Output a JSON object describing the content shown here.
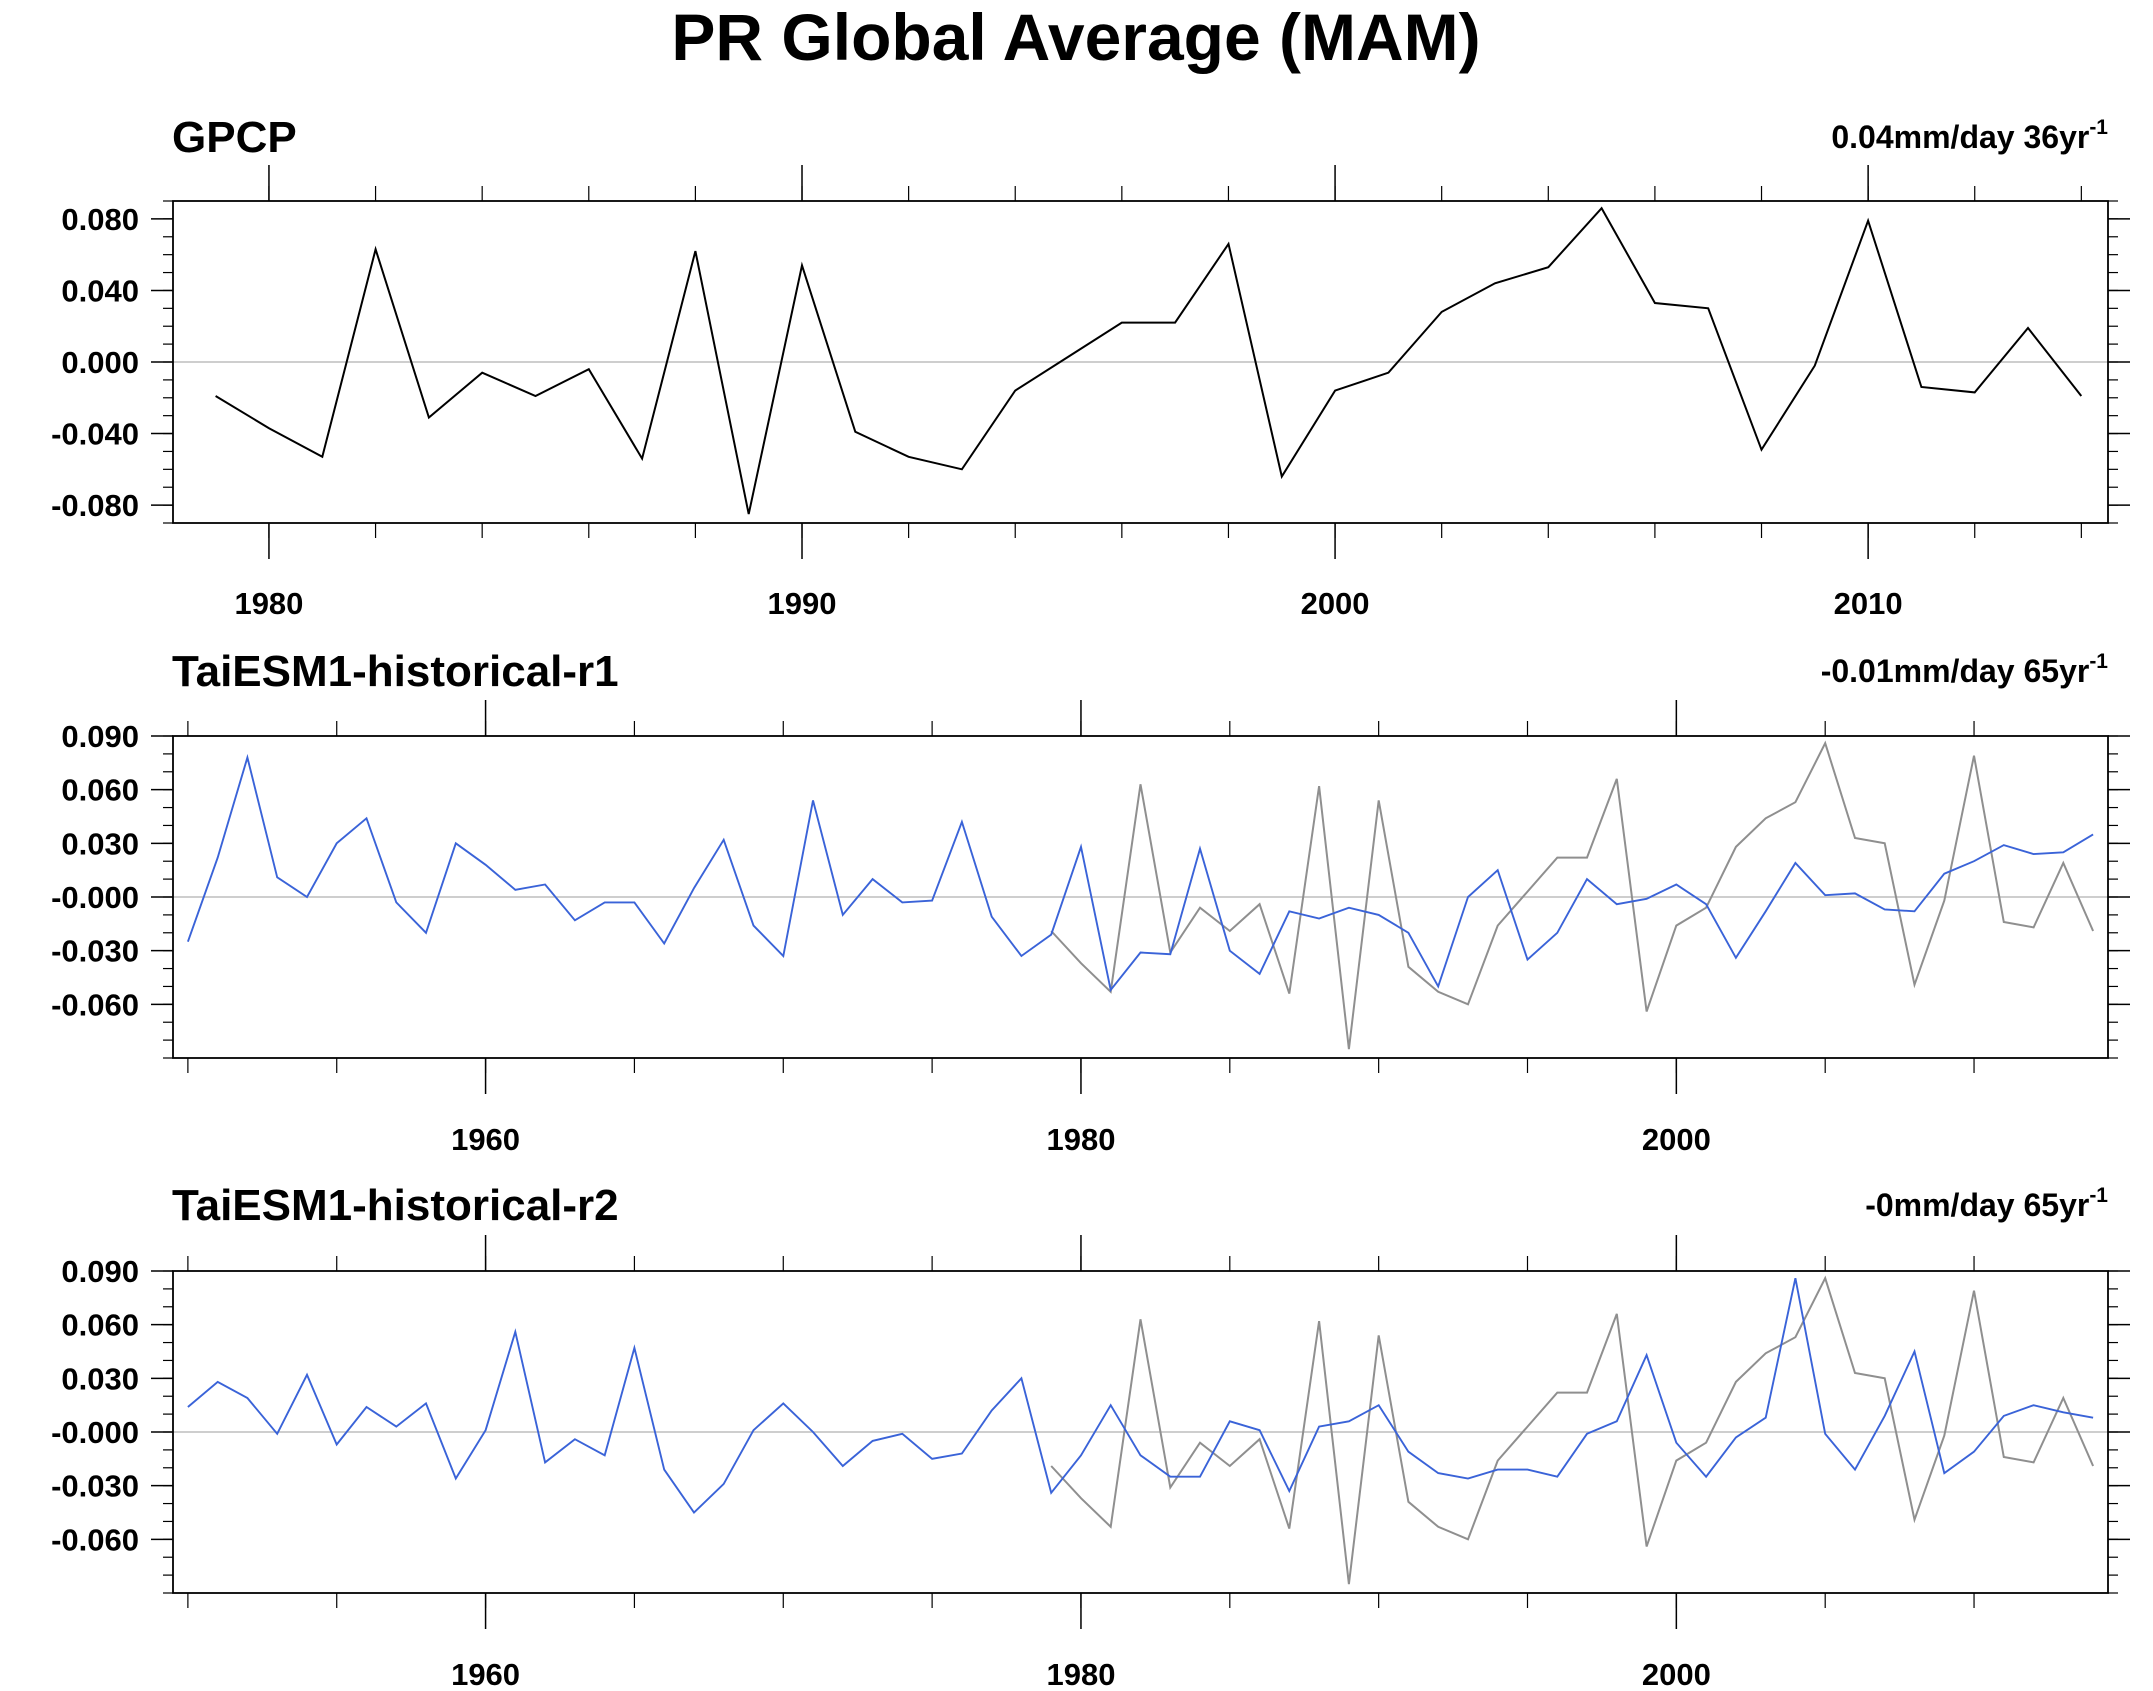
{
  "title": "PR Global Average (MAM)",
  "colors": {
    "obs": "#000000",
    "obs_reference": "#8f8f8f",
    "model": "#3a63d8",
    "zero_line": "#bdbdbd",
    "axis": "#000000"
  },
  "chart_data": [
    {
      "type": "line",
      "title": "GPCP",
      "trend_label": {
        "value": "0.04mm/day 36yr",
        "superscript": "-1"
      },
      "xlim": [
        1978.2,
        2014.5
      ],
      "ylim": [
        -0.09,
        0.09
      ],
      "x_ticks": [
        1980,
        1990,
        2000,
        2010
      ],
      "y_ticks": [
        0.08,
        0.04,
        0.0,
        -0.04,
        -0.08
      ],
      "y_tick_labels": [
        "0.080",
        "0.040",
        "0.000",
        "-0.040",
        "-0.080"
      ],
      "y_minor_step": 0.01,
      "x_minor_step": 2,
      "series": [
        {
          "role": "obs",
          "x": [
            1979,
            1980,
            1981,
            1982,
            1983,
            1984,
            1985,
            1986,
            1987,
            1988,
            1989,
            1990,
            1991,
            1992,
            1993,
            1994,
            1995,
            1996,
            1997,
            1998,
            1999,
            2000,
            2001,
            2002,
            2003,
            2004,
            2005,
            2006,
            2007,
            2008,
            2009,
            2010,
            2011,
            2012,
            2013,
            2014
          ],
          "values": [
            -0.019,
            -0.037,
            -0.053,
            0.063,
            -0.031,
            -0.006,
            -0.019,
            -0.004,
            -0.054,
            0.062,
            -0.085,
            0.054,
            -0.039,
            -0.053,
            -0.06,
            -0.016,
            0.003,
            0.022,
            0.022,
            0.066,
            -0.064,
            -0.016,
            -0.006,
            0.028,
            0.044,
            0.053,
            0.086,
            0.033,
            0.03,
            -0.049,
            -0.002,
            0.079,
            -0.014,
            -0.017,
            0.019,
            -0.019
          ]
        }
      ]
    },
    {
      "type": "line",
      "title": "TaiESM1-historical-r1",
      "trend_label": {
        "value": "-0.01mm/day 65yr",
        "superscript": "-1"
      },
      "xlim": [
        1949.5,
        2014.5
      ],
      "ylim": [
        -0.09,
        0.09
      ],
      "x_ticks": [
        1960,
        1980,
        2000
      ],
      "y_ticks": [
        0.09,
        0.06,
        0.03,
        0.0,
        -0.03,
        -0.06
      ],
      "y_tick_labels": [
        "0.090",
        "0.060",
        "0.030",
        "-0.000",
        "-0.030",
        "-0.060"
      ],
      "y_minor_step": 0.01,
      "x_minor_step": 5,
      "series": [
        {
          "role": "obs_reference",
          "x": [
            1979,
            1980,
            1981,
            1982,
            1983,
            1984,
            1985,
            1986,
            1987,
            1988,
            1989,
            1990,
            1991,
            1992,
            1993,
            1994,
            1995,
            1996,
            1997,
            1998,
            1999,
            2000,
            2001,
            2002,
            2003,
            2004,
            2005,
            2006,
            2007,
            2008,
            2009,
            2010,
            2011,
            2012,
            2013,
            2014
          ],
          "values": [
            -0.019,
            -0.037,
            -0.053,
            0.063,
            -0.031,
            -0.006,
            -0.019,
            -0.004,
            -0.054,
            0.062,
            -0.085,
            0.054,
            -0.039,
            -0.053,
            -0.06,
            -0.016,
            0.003,
            0.022,
            0.022,
            0.066,
            -0.064,
            -0.016,
            -0.006,
            0.028,
            0.044,
            0.053,
            0.086,
            0.033,
            0.03,
            -0.049,
            -0.002,
            0.079,
            -0.014,
            -0.017,
            0.019,
            -0.019
          ]
        },
        {
          "role": "model",
          "x": [
            1950,
            1951,
            1952,
            1953,
            1954,
            1955,
            1956,
            1957,
            1958,
            1959,
            1960,
            1961,
            1962,
            1963,
            1964,
            1965,
            1966,
            1967,
            1968,
            1969,
            1970,
            1971,
            1972,
            1973,
            1974,
            1975,
            1976,
            1977,
            1978,
            1979,
            1980,
            1981,
            1982,
            1983,
            1984,
            1985,
            1986,
            1987,
            1988,
            1989,
            1990,
            1991,
            1992,
            1993,
            1994,
            1995,
            1996,
            1997,
            1998,
            1999,
            2000,
            2001,
            2002,
            2003,
            2004,
            2005,
            2006,
            2007,
            2008,
            2009,
            2010,
            2011,
            2012,
            2013,
            2014
          ],
          "values": [
            -0.025,
            0.022,
            0.078,
            0.011,
            0.0,
            0.03,
            0.044,
            -0.003,
            -0.02,
            0.03,
            0.018,
            0.004,
            0.007,
            -0.013,
            -0.003,
            -0.003,
            -0.026,
            0.005,
            0.032,
            -0.016,
            -0.033,
            0.054,
            -0.01,
            0.01,
            -0.003,
            -0.002,
            0.042,
            -0.011,
            -0.033,
            -0.021,
            0.028,
            -0.052,
            -0.031,
            -0.032,
            0.027,
            -0.03,
            -0.043,
            -0.008,
            -0.012,
            -0.006,
            -0.01,
            -0.02,
            -0.05,
            0.0,
            0.015,
            -0.035,
            -0.02,
            0.01,
            -0.004,
            -0.001,
            0.007,
            -0.004,
            -0.034,
            -0.008,
            0.019,
            0.001,
            0.002,
            -0.007,
            -0.008,
            0.013,
            0.02,
            0.029,
            0.024,
            0.025,
            0.035
          ]
        }
      ]
    },
    {
      "type": "line",
      "title": "TaiESM1-historical-r2",
      "trend_label": {
        "value": "-0mm/day 65yr",
        "superscript": "-1"
      },
      "xlim": [
        1949.5,
        2014.5
      ],
      "ylim": [
        -0.09,
        0.09
      ],
      "x_ticks": [
        1960,
        1980,
        2000
      ],
      "y_ticks": [
        0.09,
        0.06,
        0.03,
        0.0,
        -0.03,
        -0.06
      ],
      "y_tick_labels": [
        "0.090",
        "0.060",
        "0.030",
        "-0.000",
        "-0.030",
        "-0.060"
      ],
      "y_minor_step": 0.01,
      "x_minor_step": 5,
      "series": [
        {
          "role": "obs_reference",
          "x": [
            1979,
            1980,
            1981,
            1982,
            1983,
            1984,
            1985,
            1986,
            1987,
            1988,
            1989,
            1990,
            1991,
            1992,
            1993,
            1994,
            1995,
            1996,
            1997,
            1998,
            1999,
            2000,
            2001,
            2002,
            2003,
            2004,
            2005,
            2006,
            2007,
            2008,
            2009,
            2010,
            2011,
            2012,
            2013,
            2014
          ],
          "values": [
            -0.019,
            -0.037,
            -0.053,
            0.063,
            -0.031,
            -0.006,
            -0.019,
            -0.004,
            -0.054,
            0.062,
            -0.085,
            0.054,
            -0.039,
            -0.053,
            -0.06,
            -0.016,
            0.003,
            0.022,
            0.022,
            0.066,
            -0.064,
            -0.016,
            -0.006,
            0.028,
            0.044,
            0.053,
            0.086,
            0.033,
            0.03,
            -0.049,
            -0.002,
            0.079,
            -0.014,
            -0.017,
            0.019,
            -0.019
          ]
        },
        {
          "role": "model",
          "x": [
            1950,
            1951,
            1952,
            1953,
            1954,
            1955,
            1956,
            1957,
            1958,
            1959,
            1960,
            1961,
            1962,
            1963,
            1964,
            1965,
            1966,
            1967,
            1968,
            1969,
            1970,
            1971,
            1972,
            1973,
            1974,
            1975,
            1976,
            1977,
            1978,
            1979,
            1980,
            1981,
            1982,
            1983,
            1984,
            1985,
            1986,
            1987,
            1988,
            1989,
            1990,
            1991,
            1992,
            1993,
            1994,
            1995,
            1996,
            1997,
            1998,
            1999,
            2000,
            2001,
            2002,
            2003,
            2004,
            2005,
            2006,
            2007,
            2008,
            2009,
            2010,
            2011,
            2012,
            2013,
            2014
          ],
          "values": [
            0.014,
            0.028,
            0.019,
            -0.001,
            0.032,
            -0.007,
            0.014,
            0.003,
            0.016,
            -0.026,
            0.001,
            0.056,
            -0.017,
            -0.004,
            -0.013,
            0.047,
            -0.021,
            -0.045,
            -0.029,
            0.001,
            0.016,
            0.0,
            -0.019,
            -0.005,
            -0.001,
            -0.015,
            -0.012,
            0.012,
            0.03,
            -0.034,
            -0.013,
            0.015,
            -0.013,
            -0.025,
            -0.025,
            0.006,
            0.001,
            -0.033,
            0.003,
            0.006,
            0.015,
            -0.011,
            -0.023,
            -0.026,
            -0.021,
            -0.021,
            -0.025,
            -0.001,
            0.006,
            0.043,
            -0.006,
            -0.025,
            -0.003,
            0.008,
            0.086,
            -0.001,
            -0.021,
            0.009,
            0.045,
            -0.023,
            -0.011,
            0.009,
            0.015,
            0.011,
            0.008
          ]
        }
      ]
    }
  ]
}
